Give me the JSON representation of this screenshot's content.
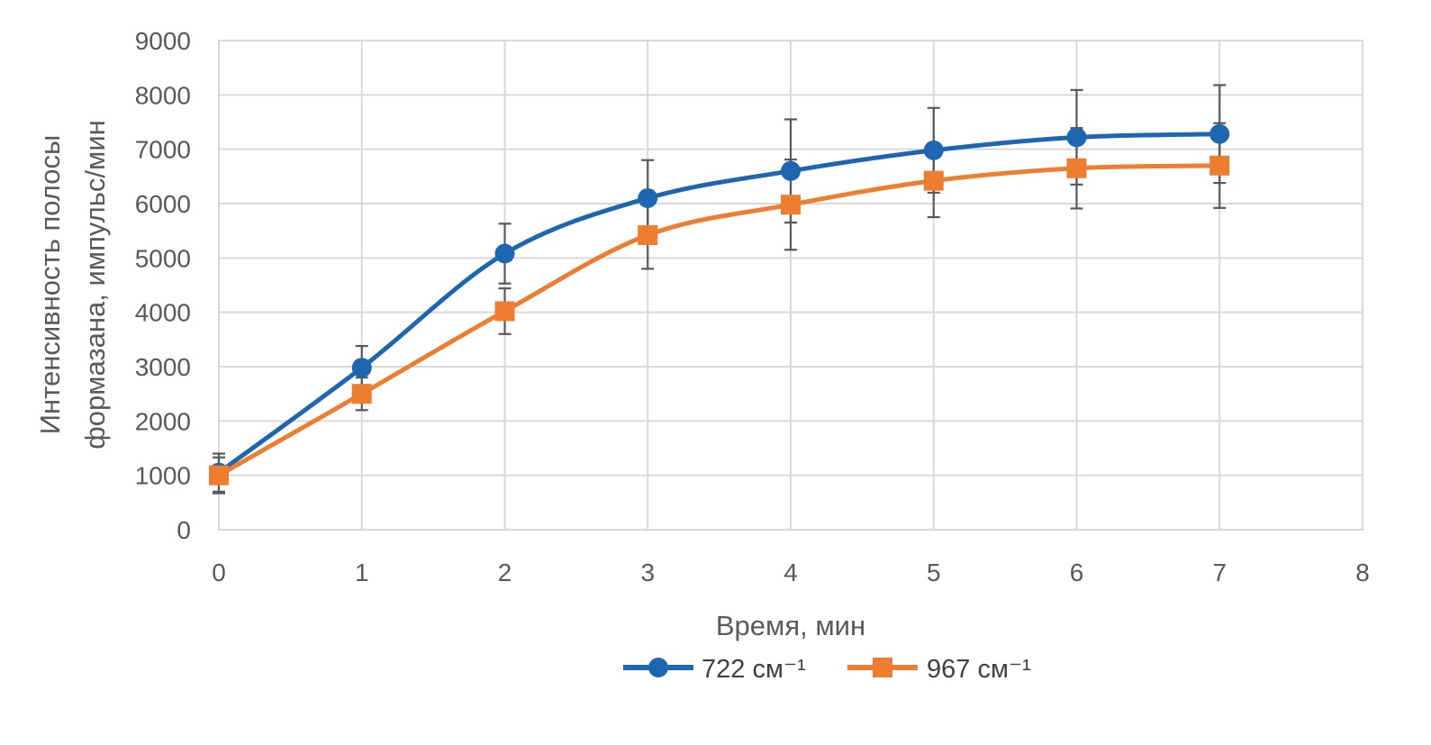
{
  "chart_data": {
    "type": "line",
    "title": "",
    "xlabel": "Время, мин",
    "ylabel_line1": "Интенсивность полосы",
    "ylabel_line2": "формазана, импульс/мин",
    "xlim": [
      0,
      8
    ],
    "ylim": [
      0,
      9000
    ],
    "x_ticks": [
      0,
      1,
      2,
      3,
      4,
      5,
      6,
      7,
      8
    ],
    "y_ticks": [
      0,
      1000,
      2000,
      3000,
      4000,
      5000,
      6000,
      7000,
      8000,
      9000
    ],
    "grid": true,
    "legend_position": "bottom",
    "series": [
      {
        "name": "722 см⁻¹",
        "color": "#1f66b0",
        "marker": "circle",
        "x": [
          0,
          1,
          2,
          3,
          4,
          5,
          6,
          7
        ],
        "values": [
          1050,
          2980,
          5080,
          6100,
          6600,
          6980,
          7220,
          7280
        ],
        "error": [
          350,
          400,
          550,
          700,
          950,
          780,
          870,
          900
        ]
      },
      {
        "name": "967 см⁻¹",
        "color": "#ed7d31",
        "marker": "square",
        "x": [
          0,
          1,
          2,
          3,
          4,
          5,
          6,
          7
        ],
        "values": [
          1000,
          2500,
          4020,
          5420,
          5980,
          6420,
          6650,
          6700
        ],
        "error": [
          330,
          300,
          420,
          620,
          830,
          670,
          740,
          780
        ]
      }
    ]
  }
}
